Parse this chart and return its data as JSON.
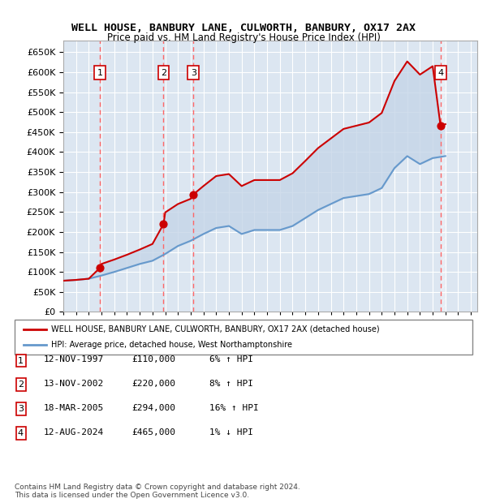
{
  "title": "WELL HOUSE, BANBURY LANE, CULWORTH, BANBURY, OX17 2AX",
  "subtitle": "Price paid vs. HM Land Registry's House Price Index (HPI)",
  "ylabel_ticks": [
    "£0",
    "£50K",
    "£100K",
    "£150K",
    "£200K",
    "£250K",
    "£300K",
    "£350K",
    "£400K",
    "£450K",
    "£500K",
    "£550K",
    "£600K",
    "£650K"
  ],
  "ytick_values": [
    0,
    50000,
    100000,
    150000,
    200000,
    250000,
    300000,
    350000,
    400000,
    450000,
    500000,
    550000,
    600000,
    650000
  ],
  "ylim": [
    0,
    680000
  ],
  "xmin": 1995.0,
  "xmax": 2027.5,
  "sale_dates": [
    1997.87,
    2002.87,
    2005.21,
    2024.62
  ],
  "sale_prices": [
    110000,
    220000,
    294000,
    465000
  ],
  "sale_labels": [
    "1",
    "2",
    "3",
    "4"
  ],
  "background_color": "#ffffff",
  "plot_bg_color": "#dce6f1",
  "grid_color": "#ffffff",
  "red_line_color": "#cc0000",
  "blue_line_color": "#6699cc",
  "fill_color": "#c5d5e8",
  "hatch_color": "#b0c0d8",
  "dashed_line_color": "#ff6666",
  "legend_label_red": "WELL HOUSE, BANBURY LANE, CULWORTH, BANBURY, OX17 2AX (detached house)",
  "legend_label_blue": "HPI: Average price, detached house, West Northamptonshire",
  "transactions": [
    {
      "num": "1",
      "date": "12-NOV-1997",
      "price": "£110,000",
      "hpi": "6% ↑ HPI"
    },
    {
      "num": "2",
      "date": "13-NOV-2002",
      "price": "£220,000",
      "hpi": "8% ↑ HPI"
    },
    {
      "num": "3",
      "date": "18-MAR-2005",
      "price": "£294,000",
      "hpi": "16% ↑ HPI"
    },
    {
      "num": "4",
      "date": "12-AUG-2024",
      "price": "£465,000",
      "hpi": "1% ↓ HPI"
    }
  ],
  "footnote": "Contains HM Land Registry data © Crown copyright and database right 2024.\nThis data is licensed under the Open Government Licence v3.0.",
  "hpi_years": [
    1995,
    1996,
    1997,
    1998,
    1999,
    2000,
    2001,
    2002,
    2003,
    2004,
    2005,
    2006,
    2007,
    2008,
    2009,
    2010,
    2011,
    2012,
    2013,
    2014,
    2015,
    2016,
    2017,
    2018,
    2019,
    2020,
    2021,
    2022,
    2023,
    2024,
    2025
  ],
  "hpi_values": [
    78000,
    80000,
    83000,
    91000,
    100000,
    110000,
    120000,
    128000,
    145000,
    165000,
    178000,
    195000,
    210000,
    215000,
    195000,
    205000,
    205000,
    205000,
    215000,
    235000,
    255000,
    270000,
    285000,
    290000,
    295000,
    310000,
    360000,
    390000,
    370000,
    385000,
    390000
  ],
  "red_years": [
    1995,
    1996,
    1997,
    1997.87,
    1998,
    1999,
    2000,
    2001,
    2002,
    2002.87,
    2003,
    2004,
    2005,
    2005.21,
    2006,
    2007,
    2008,
    2009,
    2010,
    2011,
    2012,
    2013,
    2014,
    2015,
    2016,
    2017,
    2018,
    2019,
    2020,
    2021,
    2022,
    2023,
    2024,
    2024.62,
    2025
  ],
  "red_values": [
    78000,
    80000,
    83000,
    110000,
    120000,
    131000,
    143000,
    156000,
    170000,
    220000,
    249000,
    270000,
    283000,
    294000,
    315000,
    340000,
    345000,
    315000,
    330000,
    330000,
    330000,
    347000,
    378000,
    410000,
    434000,
    458000,
    466000,
    474000,
    498000,
    578000,
    627000,
    594000,
    615000,
    465000,
    470000
  ],
  "future_start": 2024.62
}
